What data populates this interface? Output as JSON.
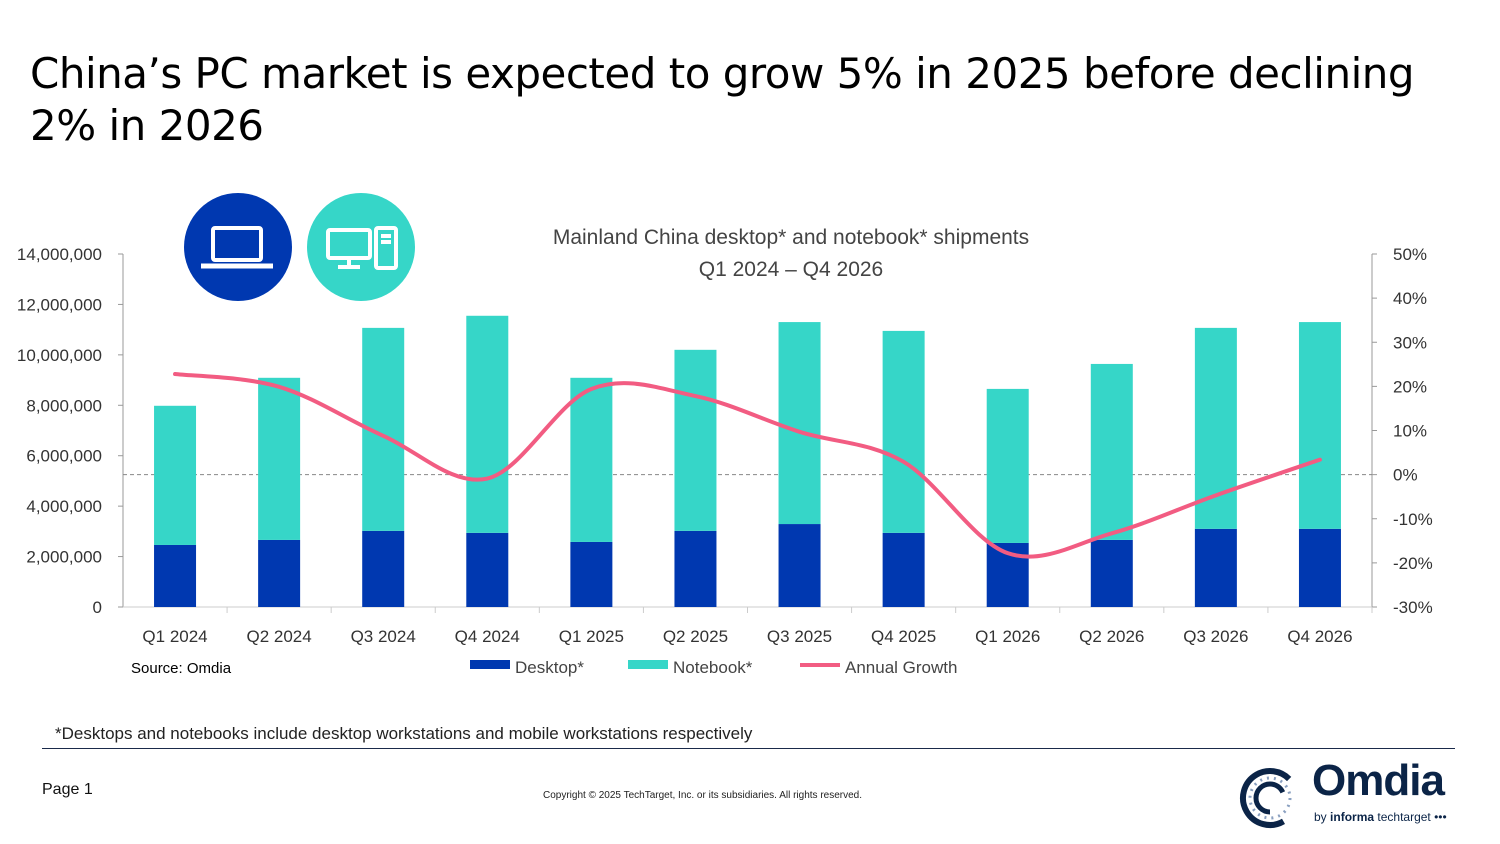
{
  "slide": {
    "title": "China’s PC market is expected to grow 5% in 2025 before declining 2% in 2026",
    "footnote": "*Desktops and notebooks include desktop workstations and mobile workstations respectively",
    "page": "Page 1",
    "copyright": "Copyright © 2025 TechTarget, Inc. or its subsidiaries. All rights reserved.",
    "logo": {
      "name": "Omdia",
      "sub_brand": "by",
      "sub_bold": "informa",
      "sub_rest": "techtarget"
    },
    "icons": [
      "laptop-icon",
      "desktop-computer-icon"
    ]
  },
  "chart_data": {
    "type": "bar",
    "stacked": true,
    "title": "Mainland China desktop* and notebook* shipments",
    "subtitle": "Q1 2024 – Q4 2026",
    "source": "Source: Omdia",
    "categories": [
      "Q1 2024",
      "Q2 2024",
      "Q3 2024",
      "Q4 2024",
      "Q1 2025",
      "Q2 2025",
      "Q3 2025",
      "Q4 2025",
      "Q1 2026",
      "Q2 2026",
      "Q3 2026",
      "Q4 2026"
    ],
    "series": [
      {
        "name": "Desktop*",
        "type": "bar",
        "axis": "left",
        "color": "#0038B0",
        "values": [
          2460000,
          2660000,
          3020000,
          2940000,
          2580000,
          3020000,
          3290000,
          2940000,
          2540000,
          2660000,
          3100000,
          3100000
        ]
      },
      {
        "name": "Notebook*",
        "type": "bar",
        "axis": "left",
        "color": "#36D6C8",
        "values": [
          5520000,
          6430000,
          8050000,
          8610000,
          6510000,
          7180000,
          8010000,
          8010000,
          6110000,
          6980000,
          7970000,
          8200000
        ]
      },
      {
        "name": "Annual Growth",
        "type": "line",
        "axis": "right",
        "color": "#F25C82",
        "values": [
          22.8,
          19.9,
          8.8,
          -0.9,
          19.4,
          17.8,
          9.7,
          2.9,
          -17.8,
          -13.3,
          -4.7,
          3.4
        ]
      }
    ],
    "y_left": {
      "range": [
        0,
        14000000
      ],
      "ticks": [
        "0",
        "2,000,000",
        "4,000,000",
        "6,000,000",
        "8,000,000",
        "10,000,000",
        "12,000,000",
        "14,000,000"
      ]
    },
    "y_right": {
      "range": [
        -30,
        50
      ],
      "ticks": [
        "-30%",
        "-20%",
        "-10%",
        "0%",
        "10%",
        "20%",
        "30%",
        "40%",
        "50%"
      ],
      "reference_line": 0
    },
    "grid": false,
    "legend_position": "bottom"
  }
}
